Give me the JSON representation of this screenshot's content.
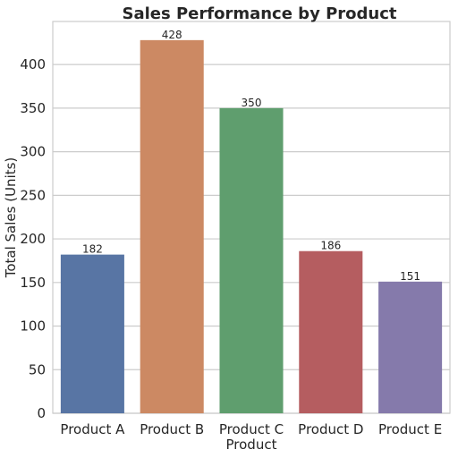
{
  "chart_data": {
    "type": "bar",
    "title": "Sales Performance by Product",
    "xlabel": "Product",
    "ylabel": "Total Sales (Units)",
    "categories": [
      "Product A",
      "Product B",
      "Product C",
      "Product D",
      "Product E"
    ],
    "values": [
      182,
      428,
      350,
      186,
      151
    ],
    "data_labels": [
      "182",
      "428",
      "350",
      "186",
      "151"
    ],
    "colors": [
      "#5875a4",
      "#cc8963",
      "#5f9e6e",
      "#b55d60",
      "#857aab"
    ],
    "ylim": [
      0,
      449.4
    ],
    "yticks": [
      0,
      50,
      100,
      150,
      200,
      250,
      300,
      350,
      400
    ],
    "ytick_labels": [
      "0",
      "50",
      "100",
      "150",
      "200",
      "250",
      "300",
      "350",
      "400"
    ],
    "grid": true,
    "legend": false
  }
}
